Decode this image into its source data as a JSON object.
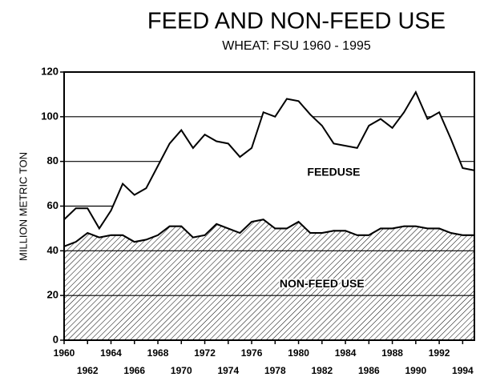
{
  "chart_data": {
    "type": "stacked-area",
    "title": "FEED AND NON-FEED USE",
    "subtitle": "WHEAT: FSU 1960 - 1995",
    "y_label": "MILLION METRIC TON",
    "x": [
      1960,
      1961,
      1962,
      1963,
      1964,
      1965,
      1966,
      1967,
      1968,
      1969,
      1970,
      1971,
      1972,
      1973,
      1974,
      1975,
      1976,
      1977,
      1978,
      1979,
      1980,
      1981,
      1982,
      1983,
      1984,
      1985,
      1986,
      1987,
      1988,
      1989,
      1990,
      1991,
      1992,
      1993,
      1994,
      1995
    ],
    "series": [
      {
        "name": "NON-FEED USE",
        "color": "#000000",
        "values": [
          42,
          44,
          48,
          46,
          47,
          47,
          44,
          45,
          47,
          51,
          51,
          46,
          47,
          52,
          50,
          48,
          53,
          54,
          50,
          50,
          53,
          48,
          48,
          49,
          49,
          47,
          47,
          50,
          50,
          51,
          51,
          50,
          50,
          48,
          47,
          47
        ]
      },
      {
        "name": "FEEDUSE",
        "color": "#ffffff",
        "values": [
          12,
          15,
          11,
          4,
          11,
          23,
          21,
          23,
          31,
          37,
          43,
          40,
          45,
          37,
          38,
          34,
          33,
          48,
          50,
          58,
          54,
          53,
          48,
          39,
          38,
          39,
          49,
          49,
          45,
          51,
          60,
          49,
          52,
          42,
          30,
          29
        ]
      }
    ],
    "xlim": [
      1960,
      1995
    ],
    "xticks": [
      1960,
      1962,
      1964,
      1966,
      1968,
      1970,
      1972,
      1974,
      1976,
      1978,
      1980,
      1982,
      1984,
      1986,
      1988,
      1990,
      1992,
      1994
    ],
    "ylim": [
      0,
      120
    ],
    "yticks": [
      0,
      20,
      40,
      60,
      80,
      100,
      120
    ],
    "grid": true
  }
}
